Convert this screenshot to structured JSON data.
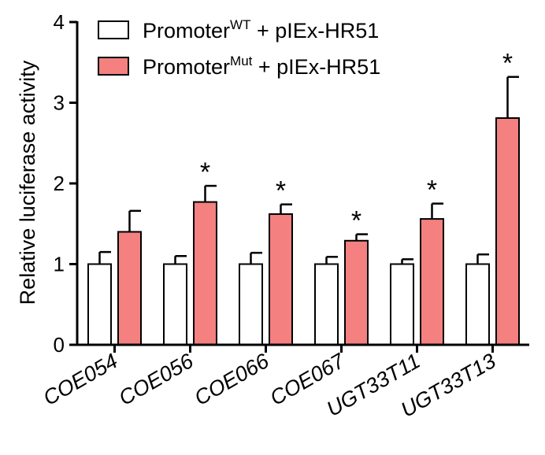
{
  "chart_data": {
    "type": "bar",
    "ylabel": "Relative luciferase activity",
    "xlabel": "",
    "ylim": [
      0,
      4
    ],
    "yticks": [
      0,
      1,
      2,
      3,
      4
    ],
    "categories": [
      "COE054",
      "COE056",
      "COE066",
      "COE067",
      "UGT33T11",
      "UGT33T13"
    ],
    "legend_position": "top-left",
    "series": [
      {
        "name": "Promoter^WT + pIEx-HR51",
        "label_base": "Promoter",
        "label_sup": "WT",
        "label_rest": " + pIEx-HR51",
        "color": "#ffffff",
        "values": [
          1.0,
          1.0,
          1.0,
          1.0,
          1.0,
          1.0
        ],
        "errors": [
          0.15,
          0.1,
          0.14,
          0.09,
          0.06,
          0.12
        ],
        "significant": [
          false,
          false,
          false,
          false,
          false,
          false
        ]
      },
      {
        "name": "Promoter^Mut + pIEx-HR51",
        "label_base": "Promoter",
        "label_sup": "Mut",
        "label_rest": " + pIEx-HR51",
        "color": "#f48080",
        "values": [
          1.4,
          1.77,
          1.62,
          1.29,
          1.56,
          2.81
        ],
        "errors": [
          0.26,
          0.2,
          0.12,
          0.08,
          0.19,
          0.51
        ],
        "significant": [
          false,
          true,
          true,
          true,
          true,
          true
        ]
      }
    ],
    "significance_marker": "*"
  }
}
